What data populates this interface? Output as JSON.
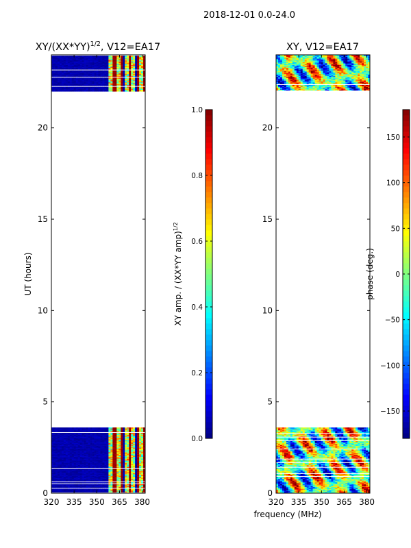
{
  "figure_title": "2018-12-01 0.0-24.0",
  "shared_xlabel": "frequency (MHz)",
  "chart_data": [
    {
      "type": "heatmap",
      "title_main": "XY/(XX*YY)",
      "title_sup": "1/2",
      "title_suffix": ", V12=EA17",
      "ylabel": "UT (hours)",
      "xlim": [
        320,
        382
      ],
      "ylim": [
        0,
        24
      ],
      "xticks": [
        320,
        335,
        350,
        365,
        380
      ],
      "yticks": [
        0,
        5,
        10,
        15,
        20
      ],
      "data_hour_ranges": [
        [
          0,
          3.6
        ],
        [
          22.0,
          24.0
        ]
      ],
      "colorbar": {
        "label_main": "XY amp. / (XX*YY amp)",
        "label_sup": "1/2",
        "range": [
          0.0,
          1.0
        ],
        "ticks": [
          "0.0",
          "0.2",
          "0.4",
          "0.6",
          "0.8",
          "1.0"
        ],
        "tick_values": [
          0.0,
          0.2,
          0.4,
          0.6,
          0.8,
          1.0
        ]
      }
    },
    {
      "type": "heatmap",
      "title_main": "XY, V12=EA17",
      "ylabel": "",
      "xlim": [
        320,
        382
      ],
      "ylim": [
        0,
        24
      ],
      "xticks": [
        320,
        335,
        350,
        365,
        380
      ],
      "yticks": [
        0,
        5,
        10,
        15,
        20
      ],
      "data_hour_ranges": [
        [
          0,
          3.6
        ],
        [
          22.0,
          24.0
        ]
      ],
      "colorbar": {
        "label_main": "phase (deg.)",
        "range": [
          -180,
          180
        ],
        "ticks": [
          "−150",
          "−100",
          "−50",
          "0",
          "50",
          "100",
          "150"
        ],
        "tick_values": [
          -150,
          -100,
          -50,
          0,
          50,
          100,
          150
        ]
      }
    }
  ]
}
